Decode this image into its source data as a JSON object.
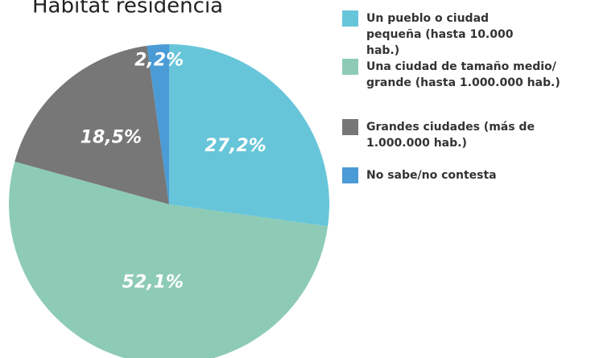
{
  "chart_data": {
    "type": "pie",
    "title": "Hábitat residencia",
    "categories": [
      "Un pueblo o ciudad pequeña (hasta 10.000 hab.)",
      "Una ciudad de tamaño medio/ grande (hasta 1.000.000 hab.)",
      "Grandes ciudades (más de 1.000.000 hab.)",
      "No sabe/no contesta"
    ],
    "values": [
      27.2,
      52.1,
      18.5,
      2.2
    ],
    "value_labels": [
      "27,2%",
      "52,1%",
      "18,5%",
      "2,2%"
    ],
    "colors": [
      "#67c5d9",
      "#8ecbb7",
      "#777777",
      "#4a9bd6"
    ]
  }
}
